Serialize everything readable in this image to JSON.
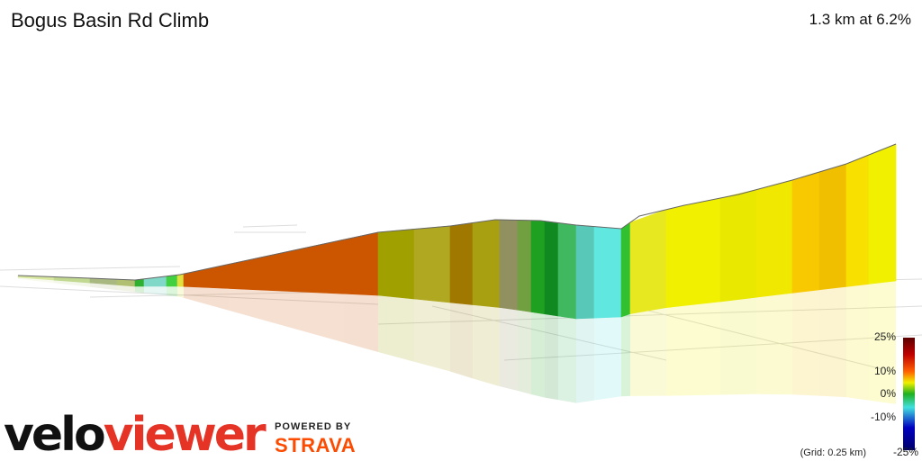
{
  "header": {
    "title": "Bogus Basin Rd Climb",
    "summary": "1.3 km at 6.2%"
  },
  "legend": {
    "labels": [
      "25%",
      "10%",
      "0%",
      "-10%",
      "-25%"
    ],
    "grid_note": "(Grid: 0.25 km)"
  },
  "branding": {
    "logo_velo": "velo",
    "logo_viewer": "viewer",
    "powered_by": "POWERED BY",
    "strava": "STRAVA"
  }
}
